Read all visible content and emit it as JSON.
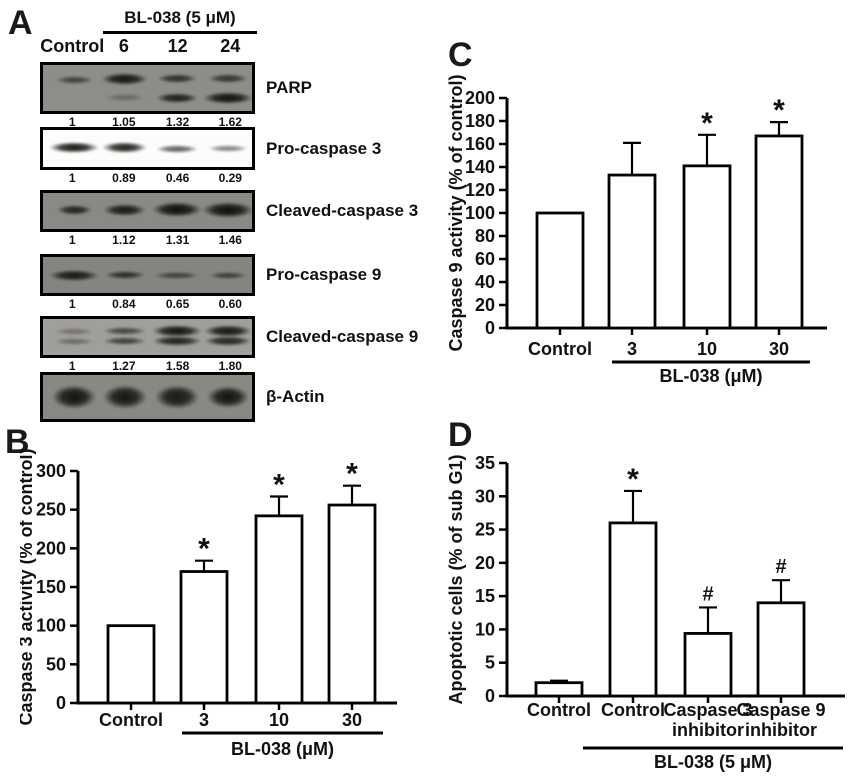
{
  "panel_labels": {
    "A": "A",
    "B": "B",
    "C": "C",
    "D": "D"
  },
  "panel_a": {
    "treatment_header": "BL-038 (5 μM)",
    "lane_labels": [
      "Control",
      "6",
      "12",
      "24"
    ],
    "blots": [
      {
        "label": "PARP",
        "values": [
          "1",
          "1.05",
          "1.32",
          "1.62"
        ],
        "bg": "#8f8d88",
        "bands": [
          [
            [
              33,
              0.6,
              8,
              0.75
            ]
          ],
          [
            [
              30,
              0.95,
              12,
              0.95
            ],
            [
              70,
              0.3,
              7,
              0.8
            ]
          ],
          [
            [
              30,
              0.75,
              9,
              0.8
            ],
            [
              72,
              0.88,
              10,
              0.85
            ]
          ],
          [
            [
              30,
              0.7,
              9,
              0.8
            ],
            [
              72,
              0.98,
              12,
              1.0
            ]
          ]
        ]
      },
      {
        "label": "Pro-caspase 3",
        "values": [
          "1",
          "0.89",
          "0.46",
          "0.29"
        ],
        "bg": "#fcfcfa",
        "bands": [
          [
            [
              48,
              0.97,
              11,
              1.0
            ]
          ],
          [
            [
              48,
              0.93,
              11,
              0.9
            ]
          ],
          [
            [
              50,
              0.65,
              8,
              0.85
            ]
          ],
          [
            [
              50,
              0.5,
              7,
              0.8
            ]
          ]
        ]
      },
      {
        "label": "Cleaved-caspase 3",
        "values": [
          "1",
          "1.12",
          "1.31",
          "1.46"
        ],
        "bg": "#8b8984",
        "bands": [
          [
            [
              46,
              0.85,
              10,
              0.7
            ]
          ],
          [
            [
              46,
              0.92,
              12,
              0.85
            ]
          ],
          [
            [
              46,
              1.0,
              15,
              1.0
            ]
          ],
          [
            [
              46,
              1.0,
              16,
              1.05
            ]
          ]
        ]
      },
      {
        "label": "Pro-caspase 9",
        "values": [
          "1",
          "0.84",
          "0.65",
          "0.60"
        ],
        "bg": "#868480",
        "bands": [
          [
            [
              50,
              0.92,
              11,
              1.0
            ]
          ],
          [
            [
              50,
              0.75,
              8,
              0.8
            ]
          ],
          [
            [
              52,
              0.6,
              7,
              0.9
            ]
          ],
          [
            [
              52,
              0.6,
              7,
              0.75
            ]
          ]
        ]
      },
      {
        "label": "Cleaved-caspase 9",
        "values": [
          "1",
          "1.27",
          "1.58",
          "1.80"
        ],
        "bg": "#a19f99",
        "bands": [
          [
            [
              36,
              0.3,
              7,
              0.8
            ],
            [
              62,
              0.35,
              7,
              0.8
            ]
          ],
          [
            [
              34,
              0.62,
              8,
              0.85
            ],
            [
              60,
              0.66,
              8,
              0.85
            ]
          ],
          [
            [
              32,
              0.97,
              12,
              1.0
            ],
            [
              62,
              0.88,
              10,
              1.0
            ]
          ],
          [
            [
              32,
              0.94,
              12,
              0.95
            ],
            [
              62,
              0.85,
              10,
              0.95
            ]
          ]
        ]
      },
      {
        "label": "β-Actin",
        "values": [],
        "bg": "#8a8883",
        "bands": [
          [
            [
              50,
              0.97,
              24,
              0.88
            ]
          ],
          [
            [
              50,
              0.95,
              24,
              0.88
            ]
          ],
          [
            [
              50,
              0.93,
              24,
              0.88
            ]
          ],
          [
            [
              50,
              0.97,
              22,
              0.85
            ]
          ]
        ]
      }
    ]
  },
  "chart_data": [
    {
      "id": "B",
      "type": "bar",
      "title": "",
      "ylabel": "Caspase 3 activity (% of control)",
      "xlabel": "",
      "ylim": [
        0,
        300
      ],
      "ytick_step": 50,
      "categories": [
        "Control",
        "3",
        "10",
        "30"
      ],
      "values": [
        100,
        170,
        242,
        256
      ],
      "errors": [
        0,
        14,
        25,
        25
      ],
      "annotations": [
        "",
        "*",
        "*",
        "*"
      ],
      "group_label": "BL-038 (μM)",
      "group_span": [
        1,
        3
      ],
      "bar_fill": "#ffffff",
      "bar_stroke": "#000000",
      "grid": false,
      "legend": false
    },
    {
      "id": "C",
      "type": "bar",
      "title": "",
      "ylabel": "Caspase 9 activity (% of control)",
      "xlabel": "",
      "ylim": [
        0,
        200
      ],
      "ytick_step": 20,
      "categories": [
        "Control",
        "3",
        "10",
        "30"
      ],
      "values": [
        100,
        133,
        141,
        167
      ],
      "errors": [
        0,
        28,
        27,
        12
      ],
      "annotations": [
        "",
        "",
        "*",
        "*"
      ],
      "group_label": "BL-038 (μM)",
      "group_span": [
        1,
        3
      ],
      "bar_fill": "#ffffff",
      "bar_stroke": "#000000",
      "grid": false,
      "legend": false
    },
    {
      "id": "D",
      "type": "bar",
      "title": "",
      "ylabel": "Apoptotic cells (% of sub G1)",
      "xlabel": "",
      "ylim": [
        0,
        35
      ],
      "ytick_step": 5,
      "categories": [
        "Control",
        "Control",
        "Caspase 3\ninhibitor",
        "Caspase 9\ninhibitor"
      ],
      "values": [
        2,
        26,
        9.4,
        14
      ],
      "errors": [
        0.3,
        4.8,
        3.9,
        3.4
      ],
      "annotations": [
        "",
        "*",
        "#",
        "#"
      ],
      "group_label": "BL-038 (5 μM)",
      "group_span": [
        1,
        3
      ],
      "bar_fill": "#ffffff",
      "bar_stroke": "#000000",
      "grid": false,
      "legend": false
    }
  ]
}
